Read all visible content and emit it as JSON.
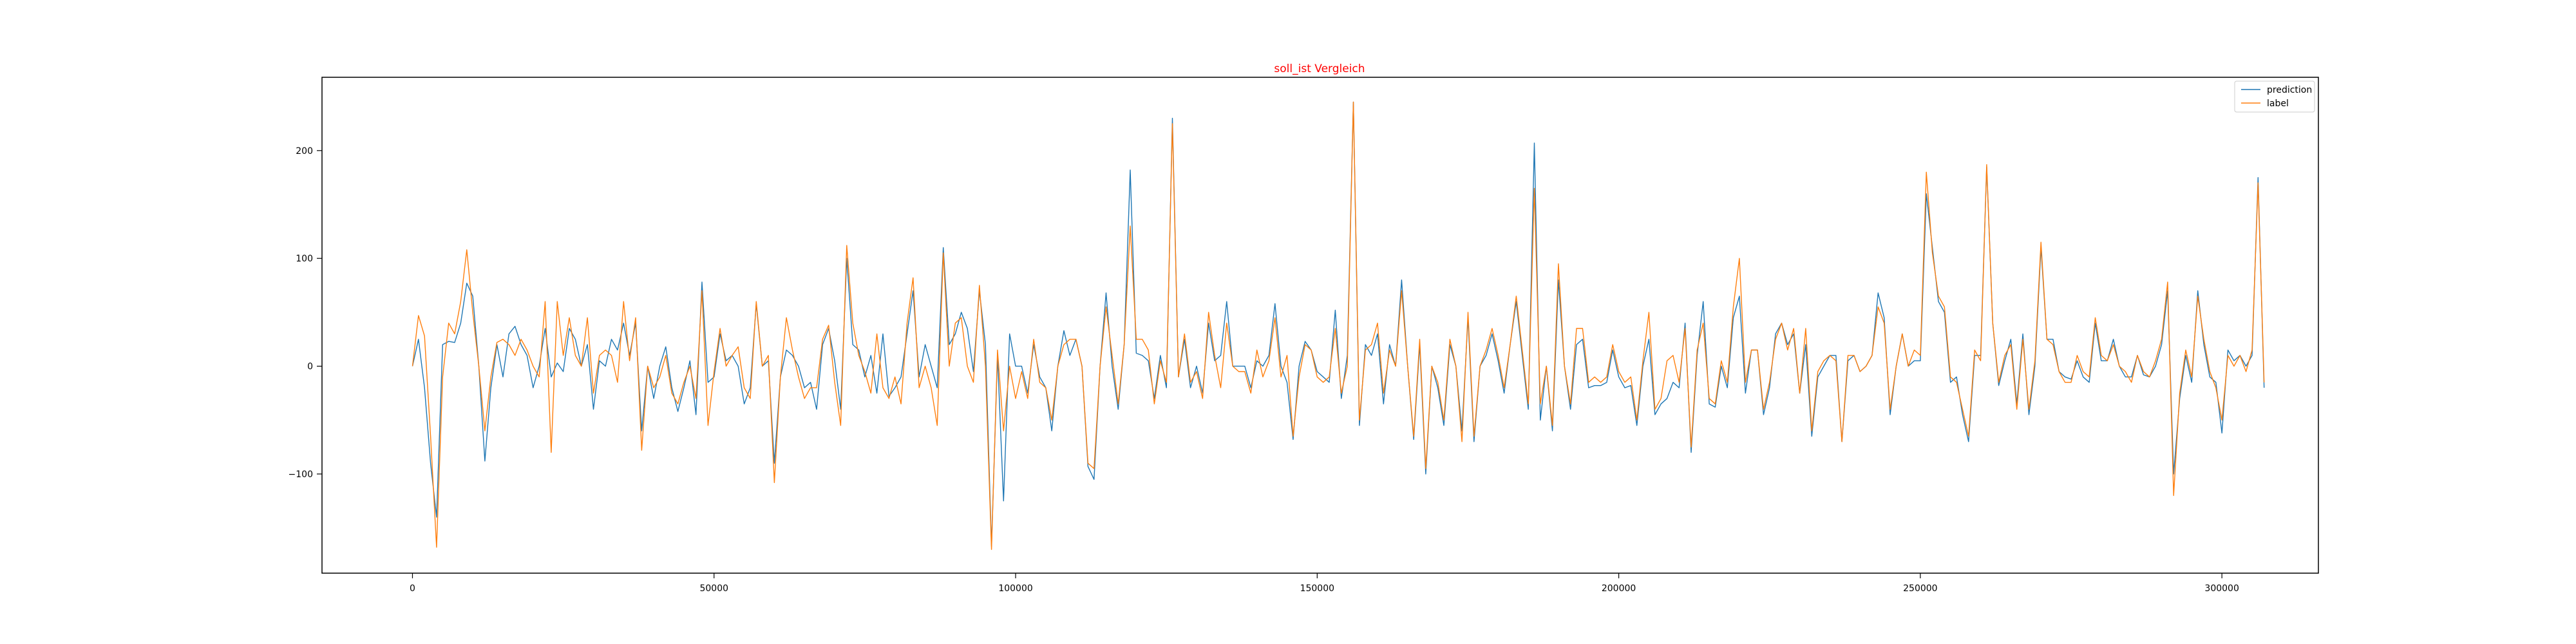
{
  "chart_data": {
    "type": "line",
    "title": "soll_ist Vergleich",
    "title_color": "#ff0000",
    "xlabel": "",
    "ylabel": "",
    "xlim": [
      -15000,
      316000
    ],
    "ylim": [
      -192,
      268
    ],
    "x_ticks": [
      0,
      50000,
      100000,
      150000,
      200000,
      250000,
      300000
    ],
    "y_ticks": [
      -100,
      0,
      100,
      200
    ],
    "grid": false,
    "legend_position": "top-right",
    "x_start": 0,
    "x_step": 1000,
    "series": [
      {
        "name": "prediction",
        "color": "#1f77b4",
        "values": [
          0,
          25,
          -20,
          -90,
          -140,
          20,
          23,
          22,
          40,
          77,
          65,
          0,
          -88,
          -20,
          20,
          -10,
          30,
          37,
          20,
          10,
          -20,
          0,
          35,
          -10,
          3,
          -5,
          35,
          25,
          0,
          20,
          -40,
          5,
          0,
          25,
          15,
          40,
          10,
          40,
          -60,
          0,
          -30,
          0,
          18,
          -20,
          -42,
          -20,
          5,
          -45,
          78,
          -15,
          -10,
          30,
          5,
          10,
          0,
          -35,
          -20,
          58,
          0,
          5,
          -90,
          -10,
          15,
          10,
          0,
          -20,
          -15,
          -40,
          20,
          35,
          5,
          -40,
          100,
          20,
          15,
          -10,
          10,
          -25,
          30,
          -28,
          -20,
          -10,
          30,
          70,
          -10,
          20,
          0,
          -20,
          110,
          20,
          30,
          50,
          35,
          -5,
          70,
          20,
          -167,
          10,
          -125,
          30,
          0,
          0,
          -25,
          20,
          -10,
          -20,
          -60,
          0,
          33,
          10,
          25,
          0,
          -93,
          -105,
          0,
          68,
          0,
          -40,
          20,
          182,
          12,
          10,
          5,
          -30,
          10,
          -20,
          230,
          -10,
          25,
          -20,
          0,
          -25,
          40,
          5,
          10,
          60,
          0,
          0,
          0,
          -20,
          5,
          0,
          10,
          58,
          0,
          -15,
          -68,
          0,
          23,
          15,
          -5,
          -10,
          -15,
          52,
          -30,
          10,
          245,
          -55,
          20,
          10,
          30,
          -35,
          20,
          0,
          80,
          0,
          -68,
          20,
          -100,
          0,
          -20,
          -55,
          20,
          0,
          -60,
          45,
          -70,
          0,
          10,
          30,
          5,
          -25,
          20,
          60,
          10,
          -40,
          207,
          -50,
          0,
          -60,
          80,
          0,
          -40,
          20,
          25,
          -20,
          -18,
          -18,
          -15,
          15,
          -10,
          -20,
          -18,
          -55,
          0,
          25,
          -45,
          -35,
          -30,
          -15,
          -20,
          40,
          -80,
          10,
          60,
          -35,
          -38,
          0,
          -20,
          45,
          65,
          -25,
          15,
          15,
          -45,
          -20,
          30,
          40,
          20,
          30,
          -25,
          20,
          -65,
          -10,
          0,
          10,
          10,
          -70,
          5,
          10,
          -5,
          0,
          10,
          68,
          45,
          -45,
          0,
          30,
          0,
          5,
          5,
          160,
          110,
          60,
          50,
          -15,
          -10,
          -45,
          -70,
          10,
          10,
          185,
          40,
          -18,
          5,
          25,
          -35,
          30,
          -45,
          0,
          110,
          25,
          25,
          -5,
          -10,
          -12,
          5,
          -10,
          -15,
          40,
          5,
          5,
          25,
          0,
          -10,
          -10,
          10,
          -8,
          -10,
          0,
          20,
          70,
          -100,
          -30,
          10,
          -15,
          70,
          20,
          -10,
          -15,
          -62,
          15,
          5,
          10,
          0,
          10,
          175,
          -20
        ]
      },
      {
        "name": "label",
        "color": "#ff7f0e",
        "values": [
          0,
          47,
          28,
          -65,
          -168,
          -10,
          40,
          30,
          60,
          108,
          50,
          0,
          -60,
          -10,
          22,
          25,
          20,
          10,
          25,
          15,
          0,
          -10,
          60,
          -80,
          60,
          10,
          45,
          10,
          0,
          45,
          -25,
          10,
          15,
          10,
          -15,
          60,
          5,
          45,
          -78,
          0,
          -20,
          -10,
          10,
          -25,
          -35,
          -15,
          0,
          -30,
          70,
          -55,
          -5,
          35,
          0,
          10,
          18,
          -20,
          -30,
          60,
          0,
          10,
          -108,
          -10,
          45,
          15,
          -10,
          -30,
          -20,
          -20,
          25,
          38,
          -15,
          -55,
          112,
          40,
          10,
          -5,
          -25,
          30,
          -20,
          -30,
          -10,
          -35,
          40,
          82,
          -20,
          0,
          -20,
          -55,
          105,
          0,
          40,
          45,
          0,
          -15,
          75,
          0,
          -170,
          15,
          -60,
          0,
          -30,
          -5,
          -30,
          25,
          -15,
          -20,
          -50,
          0,
          20,
          25,
          25,
          0,
          -90,
          -95,
          0,
          55,
          10,
          -35,
          20,
          130,
          25,
          25,
          15,
          -35,
          5,
          -15,
          225,
          -10,
          30,
          -15,
          -5,
          -30,
          50,
          10,
          -20,
          40,
          0,
          -5,
          -5,
          -25,
          15,
          -10,
          5,
          45,
          -10,
          10,
          -65,
          -10,
          20,
          15,
          -10,
          -15,
          -10,
          35,
          -25,
          0,
          245,
          -50,
          15,
          20,
          40,
          -25,
          15,
          0,
          70,
          0,
          -65,
          25,
          -95,
          0,
          -15,
          -50,
          25,
          0,
          -70,
          50,
          -65,
          0,
          15,
          35,
          10,
          -20,
          20,
          65,
          15,
          -35,
          165,
          -35,
          0,
          -55,
          95,
          0,
          -35,
          35,
          35,
          -15,
          -10,
          -15,
          -10,
          20,
          -5,
          -15,
          -10,
          -50,
          5,
          50,
          -40,
          -30,
          5,
          10,
          -15,
          35,
          -75,
          15,
          40,
          -30,
          -35,
          5,
          -15,
          55,
          100,
          -15,
          15,
          15,
          -40,
          -15,
          25,
          40,
          15,
          35,
          -25,
          35,
          -60,
          -5,
          5,
          10,
          5,
          -70,
          10,
          10,
          -5,
          0,
          10,
          55,
          40,
          -40,
          0,
          30,
          0,
          15,
          10,
          180,
          105,
          65,
          55,
          -10,
          -15,
          -40,
          -65,
          15,
          5,
          187,
          40,
          -15,
          10,
          20,
          -40,
          25,
          -40,
          5,
          115,
          25,
          20,
          -5,
          -15,
          -15,
          10,
          -5,
          -10,
          45,
          10,
          5,
          20,
          0,
          -5,
          -15,
          10,
          -5,
          -10,
          5,
          25,
          78,
          -120,
          -25,
          15,
          -10,
          65,
          25,
          -5,
          -20,
          -50,
          10,
          0,
          10,
          -5,
          15,
          170,
          -15
        ]
      }
    ]
  }
}
